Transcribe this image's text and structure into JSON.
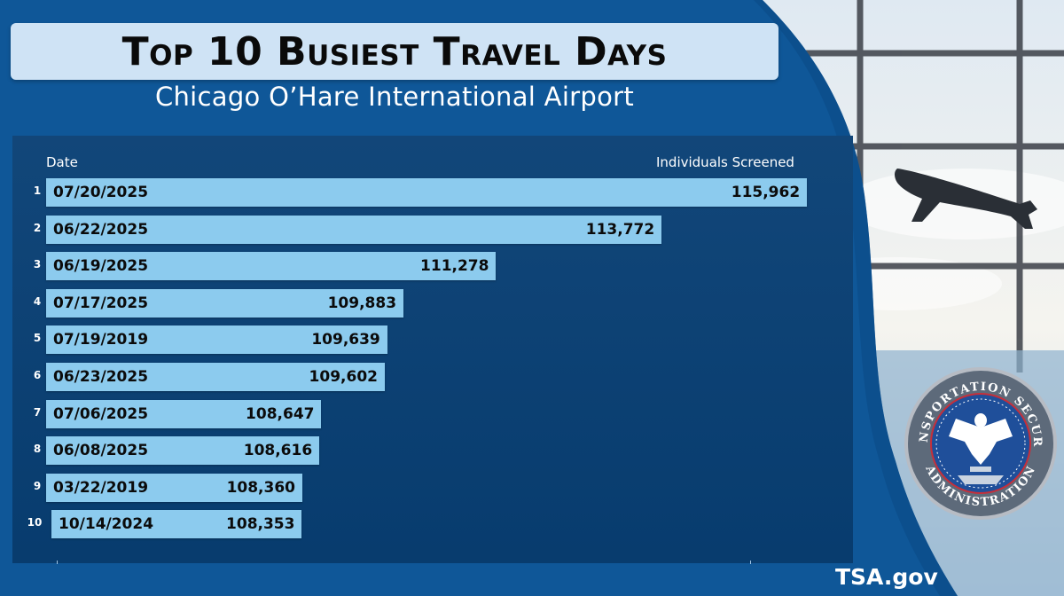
{
  "header": {
    "title": "Top 10 Busiest Travel Days",
    "subtitle": "Chicago O’Hare International Airport"
  },
  "footer": {
    "site": "TSA.gov"
  },
  "seal": {
    "icon": "tsa-seal-icon",
    "text_top": "TRANSPORTATION SECURITY",
    "text_bottom": "ADMINISTRATION"
  },
  "colors": {
    "background": "#0d5190",
    "panel": "#083f74",
    "bar": "#8ccbee",
    "title_box": "#cfe3f5"
  },
  "chart_data": {
    "type": "bar",
    "orientation": "horizontal",
    "column_headers": {
      "category": "Date",
      "value": "Individuals Screened"
    },
    "ranks": [
      "1",
      "2",
      "3",
      "4",
      "5",
      "6",
      "7",
      "8",
      "9",
      "10"
    ],
    "categories": [
      "07/20/2025",
      "06/22/2025",
      "06/19/2025",
      "07/17/2025",
      "07/19/2019",
      "06/23/2025",
      "07/06/2025",
      "06/08/2025",
      "03/22/2019",
      "10/14/2024"
    ],
    "values": [
      115962,
      113772,
      111278,
      109883,
      109639,
      109602,
      108647,
      108616,
      108360,
      108353
    ],
    "value_labels": [
      "115,962",
      "113,772",
      "111,278",
      "109,883",
      "109,639",
      "109,602",
      "108,647",
      "108,616",
      "108,360",
      "108,353"
    ],
    "xlim": [
      104500,
      116200
    ],
    "grid": false,
    "legend": "none"
  }
}
